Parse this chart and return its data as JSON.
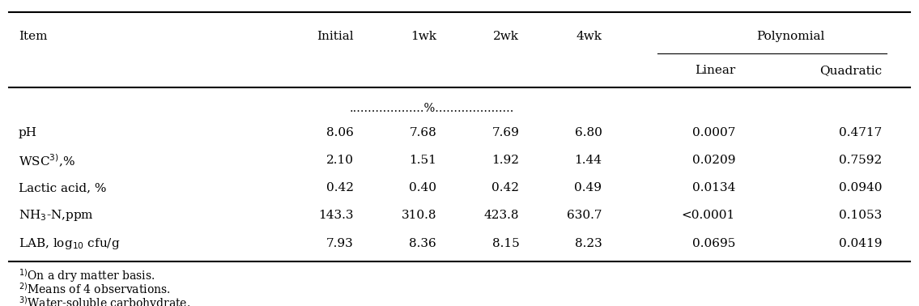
{
  "headers_row1": [
    "Item",
    "Initial",
    "1wk",
    "2wk",
    "4wk",
    "Polynomial"
  ],
  "headers_row2_linear": "Linear",
  "headers_row2_quadratic": "Quadratic",
  "percent_label": "....................%.....................",
  "rows": [
    [
      "pH",
      "8.06",
      "7.68",
      "7.69",
      "6.80",
      "0.0007",
      "0.4717"
    ],
    [
      "WSC$^{3)}$,%",
      "2.10",
      "1.51",
      "1.92",
      "1.44",
      "0.0209",
      "0.7592"
    ],
    [
      "Lactic acid, %",
      "0.42",
      "0.40",
      "0.42",
      "0.49",
      "0.0134",
      "0.0940"
    ],
    [
      "NH$_3$-N,ppm",
      "143.3",
      "310.8",
      "423.8",
      "630.7",
      "<0.0001",
      "0.1053"
    ],
    [
      "LAB, log$_{10}$ cfu/g",
      "7.93",
      "8.36",
      "8.15",
      "8.23",
      "0.0695",
      "0.0419"
    ]
  ],
  "footnotes": [
    "$^{1)}$On a dry matter basis.",
    "$^{2)}$Means of 4 observations.",
    "$^{3)}$Water-soluble carbohydrate."
  ],
  "background_color": "#ffffff",
  "font_size": 11.0,
  "footnote_font_size": 10.0
}
